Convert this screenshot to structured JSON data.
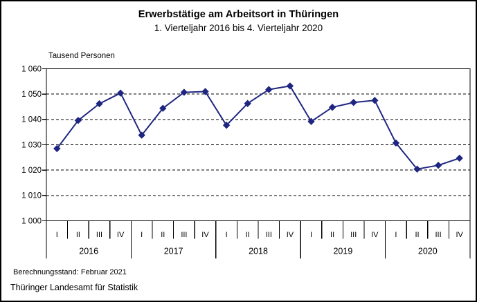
{
  "chart_data": {
    "type": "line",
    "title": "Erwerbstätige am Arbeitsort in Thüringen",
    "subtitle": "1. Vierteljahr 2016 bis 4. Vierteljahr 2020",
    "ylabel": "Tausend Personen",
    "xlabel": "",
    "ylim": [
      1000,
      1060
    ],
    "ytick_step": 10,
    "yticks": [
      {
        "value": 1060,
        "label": "1 060"
      },
      {
        "value": 1050,
        "label": "1 050"
      },
      {
        "value": 1040,
        "label": "1 040"
      },
      {
        "value": 1030,
        "label": "1 030"
      },
      {
        "value": 1020,
        "label": "1 020"
      },
      {
        "value": 1010,
        "label": "1 010"
      },
      {
        "value": 1000,
        "label": "1 000"
      }
    ],
    "grid": "horizontal-dashed",
    "legend": "none",
    "marker": "diamond",
    "year_groups": [
      {
        "year": "2016",
        "quarters": [
          "I",
          "II",
          "III",
          "IV"
        ],
        "values": [
          1028.5,
          1039.6,
          1046.2,
          1050.4
        ]
      },
      {
        "year": "2017",
        "quarters": [
          "I",
          "II",
          "III",
          "IV"
        ],
        "values": [
          1033.8,
          1044.4,
          1050.7,
          1051.0
        ]
      },
      {
        "year": "2018",
        "quarters": [
          "I",
          "II",
          "III",
          "IV"
        ],
        "values": [
          1037.7,
          1046.3,
          1051.8,
          1053.2
        ]
      },
      {
        "year": "2019",
        "quarters": [
          "I",
          "II",
          "III",
          "IV"
        ],
        "values": [
          1039.2,
          1044.8,
          1046.7,
          1047.5
        ]
      },
      {
        "year": "2020",
        "quarters": [
          "I",
          "II",
          "III",
          "IV"
        ],
        "values": [
          1030.7,
          1020.4,
          1021.9,
          1024.7
        ]
      }
    ]
  },
  "footer": {
    "line1": "Berechnungsstand: Februar 2021",
    "line2": "Thüringer Landesamt für Statistik"
  },
  "colors": {
    "line": "#1f2680",
    "axis": "#000000",
    "background": "#ffffff"
  }
}
